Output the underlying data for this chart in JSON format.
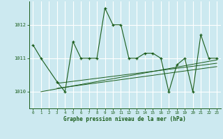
{
  "title": "Graphe pression niveau de la mer (hPa)",
  "background_color": "#cce9f0",
  "grid_color": "#ffffff",
  "line_color": "#1a5c1a",
  "xlim": [
    -0.5,
    23.5
  ],
  "ylim": [
    1009.5,
    1012.7
  ],
  "yticks": [
    1010,
    1011,
    1012
  ],
  "xticks": [
    0,
    1,
    2,
    3,
    4,
    5,
    6,
    7,
    8,
    9,
    10,
    11,
    12,
    13,
    14,
    15,
    16,
    17,
    18,
    19,
    20,
    21,
    22,
    23
  ],
  "main_series_x": [
    0,
    1,
    3,
    4,
    5,
    6,
    7,
    8,
    9,
    10,
    11,
    12,
    13,
    14,
    15,
    16,
    17,
    18,
    19,
    20,
    21,
    22,
    23
  ],
  "main_series_y": [
    1011.4,
    1011.0,
    1010.3,
    1010.0,
    1011.5,
    1011.0,
    1011.0,
    1011.0,
    1012.5,
    1012.0,
    1012.0,
    1011.0,
    1011.0,
    1011.15,
    1011.15,
    1011.0,
    1010.0,
    1010.8,
    1011.0,
    1010.0,
    1011.7,
    1011.0,
    1011.0
  ],
  "trend1_x": [
    1,
    23
  ],
  "trend1_y": [
    1010.0,
    1010.95
  ],
  "trend2_x": [
    3,
    23
  ],
  "trend2_y": [
    1010.25,
    1010.85
  ],
  "trend3_x": [
    3,
    23
  ],
  "trend3_y": [
    1010.1,
    1010.75
  ]
}
